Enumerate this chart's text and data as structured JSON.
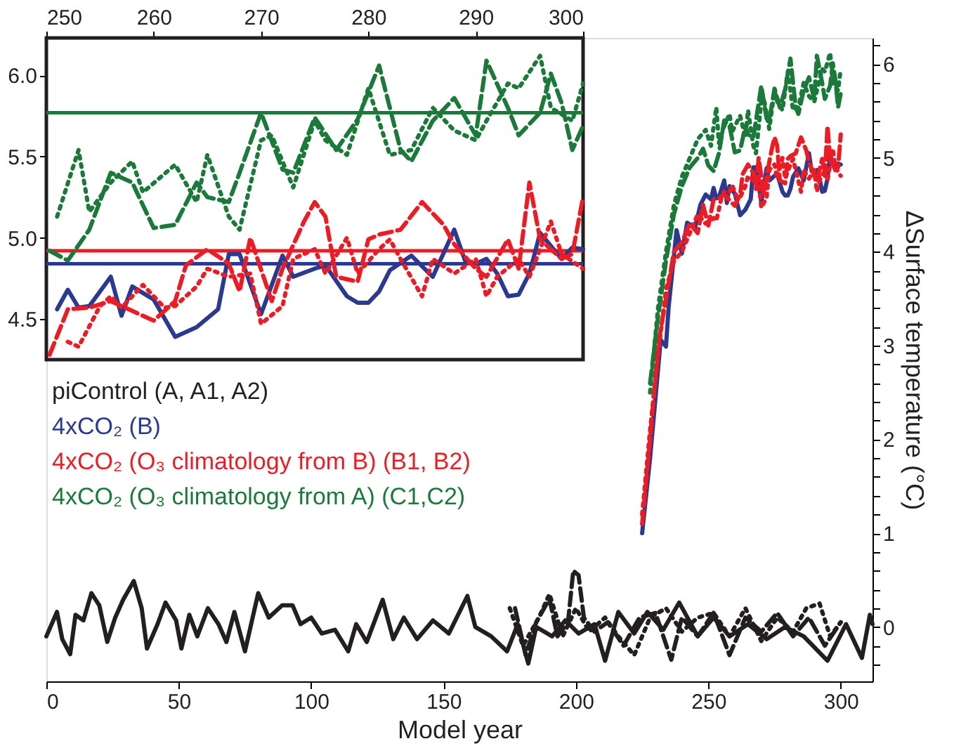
{
  "chart_data": [
    {
      "type": "line",
      "xlabel": "Model year",
      "ylabel": "ΔSurface temperature (°C)",
      "xlim": [
        0,
        312
      ],
      "ylim": [
        -0.58,
        6.28
      ],
      "xticks": [
        0,
        50,
        100,
        150,
        200,
        250,
        300
      ],
      "yticks": [
        {
          "value": -0.4,
          "label": null
        },
        {
          "value": -0.2,
          "label": null
        },
        0,
        {
          "value": 0.2,
          "label": null
        },
        {
          "value": 0.4,
          "label": null
        },
        {
          "value": 0.6,
          "label": null
        },
        {
          "value": 0.8,
          "label": null
        },
        1,
        {
          "value": 1.2,
          "label": null
        },
        {
          "value": 1.4,
          "label": null
        },
        {
          "value": 1.6,
          "label": null
        },
        {
          "value": 1.8,
          "label": null
        },
        2,
        {
          "value": 2.2,
          "label": null
        },
        {
          "value": 2.4,
          "label": null
        },
        {
          "value": 2.6,
          "label": null
        },
        {
          "value": 2.8,
          "label": null
        },
        3,
        {
          "value": 3.2,
          "label": null
        },
        {
          "value": 3.4,
          "label": null
        },
        {
          "value": 3.6,
          "label": null
        },
        {
          "value": 3.8,
          "label": null
        },
        4,
        {
          "value": 4.2,
          "label": null
        },
        {
          "value": 4.4,
          "label": null
        },
        {
          "value": 4.6,
          "label": null
        },
        {
          "value": 4.8,
          "label": null
        },
        5,
        {
          "value": 5.2,
          "label": null
        },
        {
          "value": 5.4,
          "label": null
        },
        {
          "value": 5.6,
          "label": null
        },
        {
          "value": 5.8,
          "label": null
        },
        6,
        {
          "value": 6.2,
          "label": null
        }
      ],
      "legend": "left",
      "grid": false,
      "series": [
        {
          "name": "piControl (A, A1, A2)",
          "color": "#231f20",
          "line_style": "solid",
          "x": [
            0,
            4,
            6,
            9,
            11,
            14,
            17,
            20,
            23,
            26,
            29,
            33,
            36,
            38,
            42,
            45,
            49,
            51,
            54,
            57,
            61,
            65,
            68,
            71,
            75,
            80,
            84,
            89,
            93,
            96,
            100,
            104,
            109,
            114,
            117,
            121,
            127,
            131,
            135,
            140,
            146,
            152,
            159,
            162,
            168,
            174,
            178,
            182,
            185,
            191,
            196,
            201,
            207,
            211,
            216,
            222,
            227,
            233,
            239,
            246,
            252,
            258,
            265,
            272,
            279,
            286,
            295,
            302,
            308,
            311,
            312
          ],
          "values": [
            -0.1,
            0.16,
            -0.13,
            -0.29,
            0.13,
            0.07,
            0.36,
            0.23,
            -0.16,
            0.1,
            0.29,
            0.49,
            0.2,
            -0.23,
            0.03,
            0.26,
            0.07,
            -0.23,
            0.13,
            -0.1,
            0.2,
            0.03,
            -0.16,
            0.16,
            -0.26,
            0.36,
            0.1,
            0.23,
            0.23,
            0.03,
            0.1,
            -0.07,
            -0.03,
            -0.26,
            0.03,
            -0.16,
            0.29,
            -0.13,
            0.1,
            -0.13,
            0.07,
            -0.07,
            0.33,
            0,
            -0.1,
            -0.26,
            0.03,
            -0.39,
            0,
            -0.1,
            0.07,
            -0.07,
            0.03,
            -0.36,
            0.16,
            -0.07,
            0.16,
            -0.03,
            0.26,
            -0.1,
            0.1,
            -0.1,
            0.03,
            -0.13,
            0,
            -0.1,
            -0.36,
            0.03,
            -0.33,
            0.13,
            0.03
          ]
        },
        {
          "color": "#231f20",
          "line_style": "dashed",
          "x": [
            177,
            181,
            185,
            190,
            193,
            197,
            199,
            201,
            203,
            207,
            212,
            218,
            224,
            230,
            236,
            240,
            246,
            252,
            258,
            264,
            270,
            276,
            282,
            288,
            294,
            300
          ],
          "values": [
            0.2,
            -0.3,
            0.05,
            0.3,
            -0.1,
            0.05,
            0.6,
            0.55,
            0.1,
            -0.05,
            0.05,
            -0.2,
            0.1,
            0.15,
            -0.35,
            0.1,
            -0.1,
            0.15,
            -0.3,
            0.1,
            -0.05,
            0.15,
            -0.1,
            0.1,
            -0.2,
            0.05
          ]
        },
        {
          "color": "#231f20",
          "line_style": "dotted",
          "x": [
            175,
            180,
            186,
            190,
            195,
            200,
            205,
            211,
            216,
            222,
            228,
            234,
            240,
            246,
            252,
            258,
            264,
            270,
            276,
            282,
            287,
            292,
            296,
            300
          ],
          "values": [
            0.2,
            -0.2,
            0.1,
            0.35,
            -0.1,
            0.2,
            -0.05,
            0.1,
            -0.1,
            -0.3,
            0.1,
            0.2,
            -0.05,
            0.1,
            0.15,
            -0.1,
            0.2,
            -0.15,
            0.1,
            -0.05,
            0.2,
            0.25,
            -0.1,
            0.05
          ]
        },
        {
          "name": "4xCO₂ (B)",
          "color": "#2b3990",
          "line_style": "solid",
          "x": [
            225,
            228,
            232,
            234,
            235,
            238,
            240,
            242,
            245,
            247,
            249,
            251,
            252,
            253,
            254,
            256,
            257,
            258,
            260,
            262,
            264,
            266,
            267,
            268,
            270,
            272,
            273,
            275,
            276,
            278,
            279,
            280,
            281,
            282,
            284,
            286,
            288,
            289,
            290,
            291,
            292,
            293,
            294,
            295,
            296,
            298,
            299,
            300
          ],
          "values": [
            1.0,
            1.8,
            3.06,
            2.99,
            3.41,
            4.23,
            3.98,
            4.31,
            4.26,
            4.5,
            4.61,
            4.56,
            4.68,
            4.57,
            4.58,
            4.76,
            4.52,
            4.7,
            4.62,
            4.39,
            4.45,
            4.56,
            4.9,
            4.9,
            4.53,
            4.89,
            4.76,
            4.81,
            4.83,
            4.64,
            4.6,
            4.6,
            4.67,
            4.8,
            4.89,
            4.76,
            5.05,
            4.86,
            4.84,
            4.87,
            4.78,
            4.64,
            4.65,
            4.78,
            5.03,
            4.87,
            4.94,
            4.93
          ]
        },
        {
          "name": "4xCO₂ (O₃ climatology from B) (B1, B2)",
          "color": "#ed1c24",
          "line_style": "dashed",
          "x": [
            225,
            228,
            231,
            234,
            237,
            240,
            243,
            246,
            248,
            250,
            252,
            254,
            256,
            258,
            260,
            262,
            263,
            265,
            267,
            268,
            269,
            271,
            272,
            274,
            275,
            276,
            277,
            279,
            280,
            281,
            283,
            285,
            287,
            288,
            290,
            291,
            293,
            294,
            295,
            296,
            298,
            299,
            300
          ],
          "values": [
            1.1,
            2.0,
            3.0,
            3.5,
            4.0,
            4.1,
            4.3,
            4.2,
            4.5,
            4.28,
            4.56,
            4.57,
            4.61,
            4.55,
            4.49,
            4.61,
            4.83,
            4.93,
            4.84,
            4.67,
            5.0,
            4.61,
            4.81,
            5.1,
            5.22,
            5.13,
            4.76,
            4.73,
            4.99,
            5.02,
            5.05,
            5.22,
            5.08,
            4.96,
            4.81,
            4.76,
            4.99,
            4.81,
            5.34,
            4.99,
            4.87,
            4.9,
            5.25
          ]
        },
        {
          "color": "#ed1c24",
          "line_style": "dotted",
          "x": [
            225,
            228,
            231,
            234,
            237,
            240,
            243,
            246,
            249,
            252,
            253,
            255,
            256,
            257,
            259,
            261,
            262,
            264,
            265,
            267,
            269,
            270,
            272,
            273,
            275,
            276,
            278,
            279,
            281,
            282,
            283,
            285,
            286,
            288,
            290,
            291,
            292,
            294,
            295,
            297,
            298,
            300
          ],
          "values": [
            1.2,
            2.1,
            2.9,
            3.6,
            3.9,
            4.0,
            4.2,
            4.4,
            4.3,
            4.36,
            4.33,
            4.58,
            4.64,
            4.57,
            4.71,
            4.57,
            4.58,
            4.7,
            4.81,
            4.76,
            4.78,
            4.47,
            4.58,
            4.87,
            4.93,
            4.78,
            5.0,
            4.78,
            4.93,
            4.99,
            4.87,
            4.64,
            4.87,
            4.78,
            4.87,
            4.64,
            4.76,
            4.87,
            4.76,
            5.1,
            4.9,
            4.81
          ]
        },
        {
          "name": "4xCO₂ (O₃ climatology from A) (C1,C2)",
          "color": "#1b7a3a",
          "line_style": "dashed",
          "x": [
            228,
            231,
            234,
            237,
            240,
            243,
            246,
            248,
            250,
            252,
            254,
            256,
            258,
            260,
            262,
            264,
            265,
            267,
            268,
            270,
            272,
            273,
            275,
            277,
            279,
            281,
            283,
            284,
            286,
            288,
            290,
            291,
            293,
            294,
            296,
            297,
            298,
            299,
            300
          ],
          "values": [
            2.6,
            3.3,
            3.9,
            4.4,
            4.7,
            4.9,
            5.0,
            5.1,
            4.92,
            4.86,
            5.05,
            5.4,
            5.34,
            5.06,
            5.08,
            5.34,
            5.25,
            5.22,
            5.4,
            5.77,
            5.42,
            5.4,
            5.74,
            5.54,
            5.73,
            6.06,
            5.54,
            5.47,
            5.72,
            5.86,
            5.63,
            6.09,
            5.8,
            5.63,
            5.77,
            6.01,
            5.83,
            5.54,
            5.69
          ]
        },
        {
          "color": "#1b7a3a",
          "line_style": "dotted",
          "x": [
            228,
            231,
            234,
            237,
            240,
            243,
            246,
            249,
            251,
            253,
            254,
            256,
            258,
            259,
            262,
            264,
            265,
            267,
            268,
            270,
            271,
            273,
            275,
            276,
            278,
            280,
            282,
            284,
            286,
            288,
            290,
            291,
            293,
            294,
            296,
            297,
            299,
            300
          ],
          "values": [
            2.5,
            3.4,
            4.0,
            4.5,
            4.8,
            5.0,
            5.2,
            5.3,
            5.13,
            5.54,
            5.16,
            5.34,
            5.47,
            5.28,
            5.45,
            5.22,
            5.51,
            5.13,
            5.05,
            5.6,
            5.63,
            5.31,
            5.72,
            5.6,
            5.51,
            5.92,
            5.51,
            5.54,
            5.8,
            5.66,
            5.6,
            5.72,
            5.95,
            5.92,
            6.12,
            5.8,
            5.72,
            5.95
          ]
        }
      ]
    },
    {
      "type": "line",
      "xlim": [
        250,
        300
      ],
      "ylim": [
        4.25,
        6.23
      ],
      "xticks": [
        250,
        260,
        270,
        280,
        290,
        300
      ],
      "yticks": [
        {
          "value": 4.5,
          "label": "4.5"
        },
        {
          "value": 5,
          "label": "5.0"
        },
        {
          "value": 5.5,
          "label": "5.5"
        },
        {
          "value": 6,
          "label": "6.0"
        }
      ],
      "grid": false,
      "ref_lines": [
        {
          "axis": "y",
          "value": 5.77,
          "color": "#1b7a3a"
        },
        {
          "axis": "y",
          "value": 4.92,
          "color": "#ed1c24"
        },
        {
          "axis": "y",
          "value": 4.84,
          "color": "#2b3990"
        }
      ],
      "series": [
        {
          "color": "#2b3990",
          "line_style": "solid",
          "x": [
            251,
            252,
            253,
            254,
            256,
            257,
            258,
            260,
            262,
            264,
            266,
            267,
            268,
            270,
            272,
            273,
            275,
            276,
            278,
            279,
            280,
            281,
            282,
            284,
            286,
            288,
            289,
            290,
            291,
            292,
            293,
            294,
            295,
            296,
            298,
            299,
            300
          ],
          "values": [
            4.56,
            4.68,
            4.57,
            4.58,
            4.76,
            4.52,
            4.7,
            4.62,
            4.39,
            4.45,
            4.56,
            4.9,
            4.9,
            4.53,
            4.89,
            4.76,
            4.81,
            4.83,
            4.64,
            4.6,
            4.6,
            4.67,
            4.8,
            4.89,
            4.76,
            5.05,
            4.86,
            4.84,
            4.87,
            4.78,
            4.64,
            4.65,
            4.78,
            5.03,
            4.87,
            4.94,
            4.93
          ]
        },
        {
          "color": "#ed1c24",
          "line_style": "dashed",
          "x": [
            250.3,
            252,
            254,
            256,
            258,
            260,
            262,
            263,
            265,
            267,
            268,
            269,
            271,
            272,
            274,
            275,
            276,
            277,
            279,
            280,
            281,
            283,
            285,
            287,
            288,
            290,
            291,
            293,
            294,
            295,
            296,
            298,
            299,
            300
          ],
          "values": [
            4.28,
            4.56,
            4.57,
            4.61,
            4.55,
            4.49,
            4.61,
            4.83,
            4.93,
            4.84,
            4.67,
            5.0,
            4.61,
            4.81,
            5.1,
            5.22,
            5.13,
            4.76,
            4.73,
            4.99,
            5.02,
            5.05,
            5.22,
            5.08,
            4.96,
            4.81,
            4.76,
            4.99,
            4.81,
            5.34,
            4.99,
            4.87,
            4.9,
            5.25
          ]
        },
        {
          "color": "#ed1c24",
          "line_style": "dotted",
          "x": [
            252,
            253,
            255,
            256,
            257,
            259,
            261,
            262,
            264,
            265,
            267,
            269,
            270,
            272,
            273,
            275,
            276,
            278,
            279,
            281,
            282,
            283,
            285,
            286,
            288,
            290,
            291,
            292,
            294,
            295,
            297,
            298,
            300
          ],
          "values": [
            4.36,
            4.33,
            4.58,
            4.64,
            4.57,
            4.71,
            4.57,
            4.58,
            4.7,
            4.81,
            4.76,
            4.78,
            4.47,
            4.58,
            4.87,
            4.93,
            4.78,
            5.0,
            4.78,
            4.93,
            4.99,
            4.87,
            4.64,
            4.87,
            4.78,
            4.87,
            4.64,
            4.76,
            4.87,
            4.76,
            5.1,
            4.9,
            4.81
          ]
        },
        {
          "color": "#1b7a3a",
          "line_style": "dashed",
          "x": [
            250.3,
            252,
            254,
            256,
            258,
            260,
            262,
            264,
            265,
            267,
            268,
            270,
            272,
            273,
            275,
            277,
            279,
            281,
            283,
            284,
            286,
            288,
            290,
            291,
            293,
            294,
            296,
            297,
            298,
            299,
            300
          ],
          "values": [
            4.92,
            4.86,
            5.05,
            5.4,
            5.34,
            5.06,
            5.08,
            5.34,
            5.25,
            5.22,
            5.4,
            5.77,
            5.42,
            5.4,
            5.74,
            5.54,
            5.73,
            6.06,
            5.54,
            5.47,
            5.72,
            5.86,
            5.63,
            6.09,
            5.8,
            5.63,
            5.77,
            6.01,
            5.83,
            5.54,
            5.69
          ]
        },
        {
          "color": "#1b7a3a",
          "line_style": "dotted",
          "x": [
            251,
            253,
            254,
            256,
            258,
            259,
            262,
            264,
            265,
            267,
            268,
            270,
            271,
            273,
            275,
            276,
            278,
            280,
            282,
            284,
            286,
            288,
            290,
            291,
            293,
            294,
            296,
            297,
            299,
            300
          ],
          "values": [
            5.13,
            5.54,
            5.16,
            5.34,
            5.47,
            5.28,
            5.45,
            5.22,
            5.51,
            5.13,
            5.05,
            5.6,
            5.63,
            5.31,
            5.72,
            5.6,
            5.51,
            5.92,
            5.51,
            5.54,
            5.8,
            5.66,
            5.6,
            5.72,
            5.95,
            5.92,
            6.12,
            5.8,
            5.72,
            5.95
          ]
        }
      ]
    }
  ]
}
